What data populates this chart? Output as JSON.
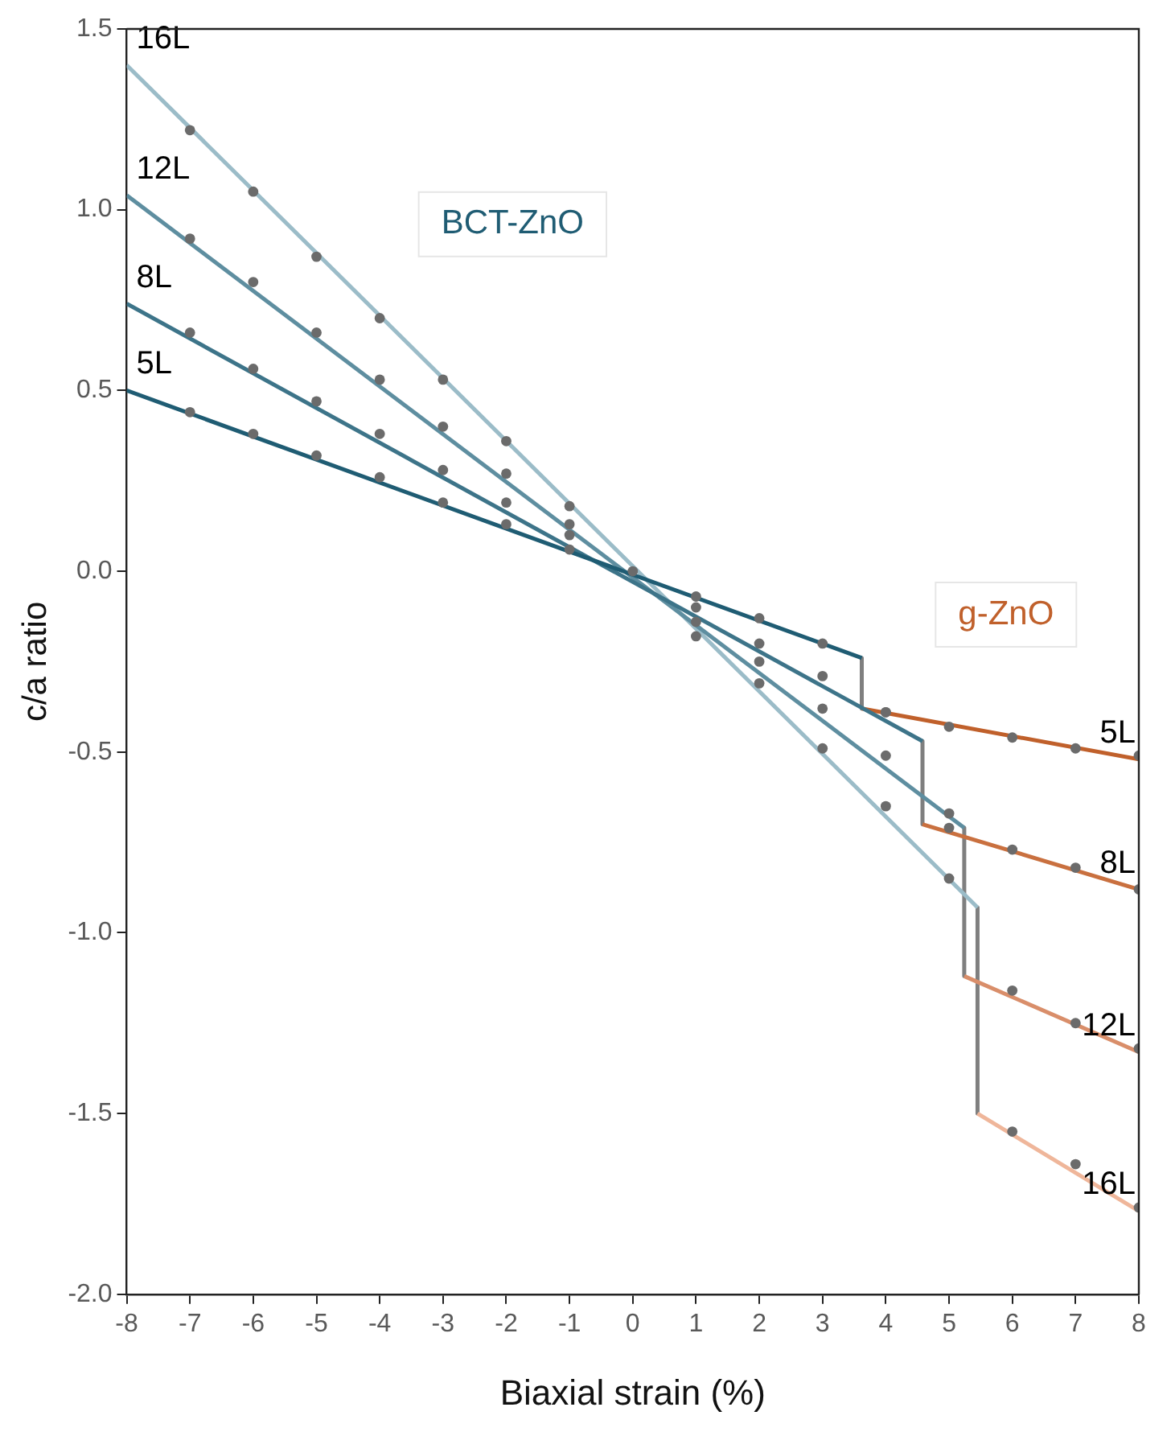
{
  "chart_data": {
    "type": "line",
    "xlabel": "Biaxial strain (%)",
    "ylabel": "c/a ratio",
    "annotations": [
      "BCT-ZnO",
      "g-ZnO"
    ],
    "xlim": [
      -8,
      8
    ],
    "xticks": [
      -8,
      -7,
      -6,
      -5,
      -4,
      -3,
      -2,
      -1,
      0,
      1,
      2,
      3,
      4,
      5,
      6,
      7,
      8
    ],
    "ylim": [
      -2,
      1.5
    ],
    "yticks": [
      {
        "value": -2,
        "label": "-2.0"
      },
      {
        "value": -1.5,
        "label": "-1.5"
      },
      {
        "value": -1,
        "label": "-1.0"
      },
      {
        "value": -0.5,
        "label": "-0.5"
      },
      {
        "value": 0,
        "label": "0.0"
      },
      {
        "value": 0.5,
        "label": "0.5"
      },
      {
        "value": 1,
        "label": "1.0"
      },
      {
        "value": 1.5,
        "label": "1.5"
      }
    ],
    "grid": false,
    "legend": false,
    "line_style": "solid",
    "series": [
      {
        "name": "5L",
        "marker": "none",
        "color": "#1f5c73",
        "x": [
          -8,
          3.62
        ],
        "values": [
          0.5,
          -0.24
        ]
      },
      {
        "name": "8L",
        "marker": "none",
        "color": "#3d7489",
        "x": [
          -8,
          4.58
        ],
        "values": [
          0.74,
          -0.47
        ]
      },
      {
        "name": "12L",
        "marker": "none",
        "color": "#5e8ea0",
        "x": [
          -8,
          5.24
        ],
        "values": [
          1.04,
          -0.71
        ]
      },
      {
        "name": "16L",
        "marker": "none",
        "color": "#9bbcc8",
        "x": [
          -8,
          5.45
        ],
        "values": [
          1.4,
          -0.93
        ]
      },
      {
        "name": "5L",
        "marker": "none",
        "color": "#c0602b",
        "x": [
          3.62,
          8
        ],
        "values": [
          -0.38,
          -0.52
        ]
      },
      {
        "name": "8L",
        "marker": "none",
        "color": "#c9703f",
        "x": [
          4.58,
          8
        ],
        "values": [
          -0.7,
          -0.88
        ]
      },
      {
        "name": "12L",
        "marker": "none",
        "color": "#d98e6a",
        "x": [
          5.24,
          8
        ],
        "values": [
          -1.12,
          -1.33
        ]
      },
      {
        "name": "16L",
        "marker": "none",
        "color": "#efb69a",
        "x": [
          5.45,
          8
        ],
        "values": [
          -1.5,
          -1.77
        ]
      },
      {
        "marker": "none",
        "color": "#7f7f7f",
        "x": [
          3.62,
          3.62
        ],
        "values": [
          -0.24,
          -0.38
        ]
      },
      {
        "marker": "none",
        "color": "#7f7f7f",
        "x": [
          4.58,
          4.58
        ],
        "values": [
          -0.47,
          -0.7
        ]
      },
      {
        "marker": "none",
        "color": "#7f7f7f",
        "x": [
          5.24,
          5.24
        ],
        "values": [
          -0.71,
          -1.12
        ]
      },
      {
        "marker": "none",
        "color": "#7f7f7f",
        "x": [
          5.45,
          5.45
        ],
        "values": [
          -0.93,
          -1.5
        ]
      },
      {
        "type": "scatter",
        "marker": "circle",
        "color": "#6b6b6b",
        "x": [
          -7,
          -6,
          -5,
          -4,
          -3,
          -2,
          -1,
          0,
          1,
          2,
          3,
          -7,
          -6,
          -5,
          -4,
          -3,
          -2,
          -1,
          1,
          2,
          3,
          4,
          -7,
          -6,
          -5,
          -4,
          -3,
          -2,
          -1,
          1,
          2,
          3,
          4,
          5,
          -7,
          -6,
          -5,
          -4,
          -3,
          -2,
          -1,
          1,
          2,
          3,
          4,
          5,
          4,
          5,
          6,
          7,
          8,
          5,
          6,
          7,
          8,
          6,
          7,
          8,
          6,
          7,
          8
        ],
        "values": [
          0.44,
          0.38,
          0.32,
          0.26,
          0.19,
          0.13,
          0.06,
          0,
          -0.07,
          -0.13,
          -0.2,
          0.66,
          0.56,
          0.47,
          0.38,
          0.28,
          0.19,
          0.1,
          -0.1,
          -0.2,
          -0.29,
          -0.39,
          0.92,
          0.8,
          0.66,
          0.53,
          0.4,
          0.27,
          0.13,
          -0.14,
          -0.25,
          -0.38,
          -0.51,
          -0.67,
          1.22,
          1.05,
          0.87,
          0.7,
          0.53,
          0.36,
          0.18,
          -0.18,
          -0.31,
          -0.49,
          -0.65,
          -0.85,
          -0.39,
          -0.43,
          -0.46,
          -0.49,
          -0.51,
          -0.71,
          -0.77,
          -0.82,
          -0.88,
          -1.16,
          -1.25,
          -1.32,
          -1.55,
          -1.64,
          -1.76
        ]
      }
    ]
  }
}
